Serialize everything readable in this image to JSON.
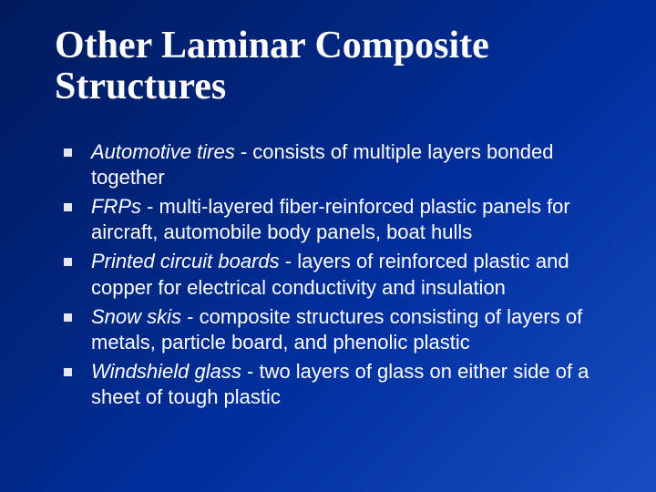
{
  "slide": {
    "title": "Other Laminar Composite Structures",
    "title_fontsize": 42,
    "title_font": "Times New Roman",
    "title_weight": "bold",
    "body_font": "Verdana",
    "body_fontsize": 22,
    "background_gradient": [
      "#001a5c",
      "#002680",
      "#0030a0",
      "#1a4cc0"
    ],
    "text_color": "#ffffff",
    "bullet_color": "#e6e6f0",
    "bullet_shape": "square",
    "bullets": [
      {
        "term": "Automotive tires",
        "rest": " - consists of multiple layers bonded together"
      },
      {
        "term": "FRPs",
        "rest": " - multi‑layered fiber‑reinforced plastic panels for aircraft, automobile body panels, boat hulls"
      },
      {
        "term": "Printed circuit boards",
        "rest": " - layers of reinforced plastic and copper for electrical conductivity and insulation"
      },
      {
        "term": "Snow skis",
        "rest": " - composite structures consisting of layers of metals, particle board, and phenolic plastic"
      },
      {
        "term": "Windshield glass",
        "rest": " - two layers of glass on either side of a sheet of tough plastic"
      }
    ]
  }
}
